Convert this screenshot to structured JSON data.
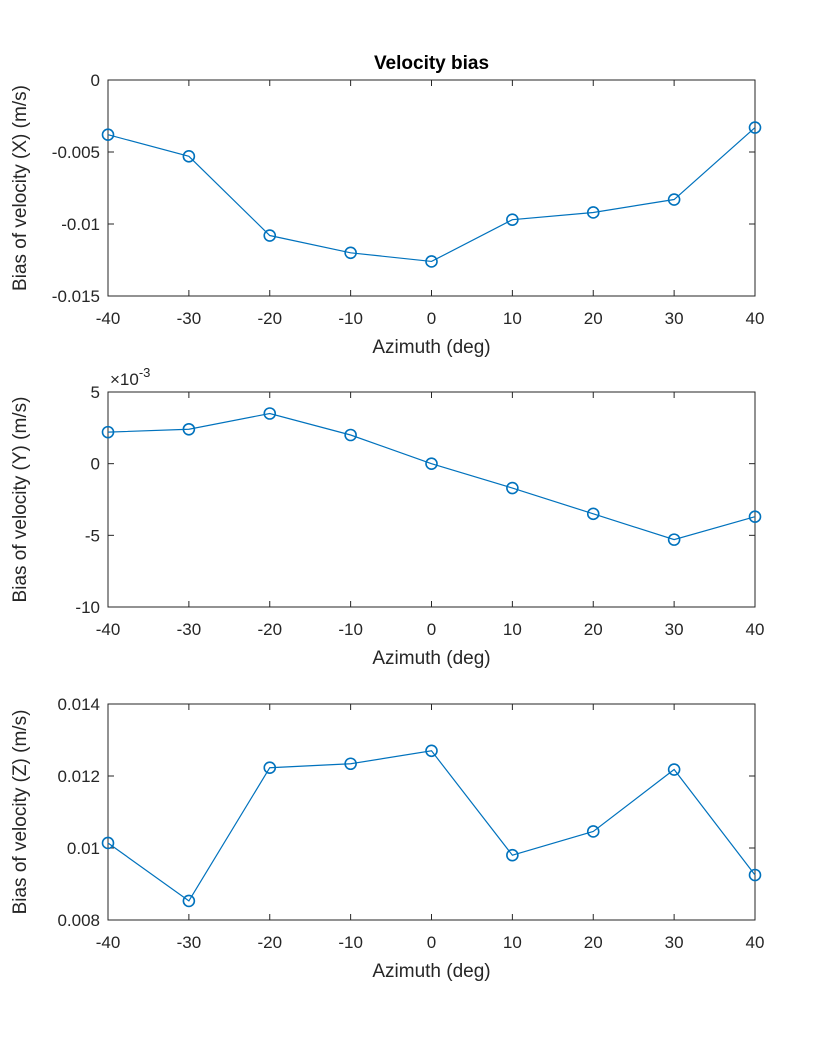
{
  "figure": {
    "title": "Velocity bias"
  },
  "colors": {
    "series": "#0072BD",
    "axis": "#262626",
    "background": "#ffffff"
  },
  "chart_data": [
    {
      "type": "line",
      "title": "Velocity bias",
      "xlabel": "Azimuth (deg)",
      "ylabel": "Bias of velocity (X) (m/s)",
      "xlim": [
        -40,
        40
      ],
      "ylim": [
        -0.015,
        0
      ],
      "xticks": [
        -40,
        -30,
        -20,
        -10,
        0,
        10,
        20,
        30,
        40
      ],
      "xtick_labels": [
        "-40",
        "-30",
        "-20",
        "-10",
        "0",
        "10",
        "20",
        "30",
        "40"
      ],
      "yticks": [
        -0.015,
        -0.01,
        -0.005,
        0
      ],
      "ytick_labels": [
        "-0.015",
        "-0.01",
        "-0.005",
        "0"
      ],
      "grid": false,
      "marker": "circle",
      "x": [
        -40,
        -30,
        -20,
        -10,
        0,
        10,
        20,
        30,
        40
      ],
      "series": [
        {
          "values": [
            -0.0038,
            -0.0053,
            -0.0108,
            -0.012,
            -0.0126,
            -0.0097,
            -0.0092,
            -0.0083,
            -0.0033
          ]
        }
      ]
    },
    {
      "type": "line",
      "title": "",
      "xlabel": "Azimuth (deg)",
      "ylabel": "Bias of velocity (Y) (m/s)",
      "y_multiplier": "×10-3",
      "xlim": [
        -40,
        40
      ],
      "ylim": [
        -0.01,
        0.005
      ],
      "xticks": [
        -40,
        -30,
        -20,
        -10,
        0,
        10,
        20,
        30,
        40
      ],
      "xtick_labels": [
        "-40",
        "-30",
        "-20",
        "-10",
        "0",
        "10",
        "20",
        "30",
        "40"
      ],
      "yticks": [
        -0.01,
        -0.005,
        0,
        0.005
      ],
      "ytick_labels": [
        "-10",
        "-5",
        "0",
        "5"
      ],
      "grid": false,
      "marker": "circle",
      "x": [
        -40,
        -30,
        -20,
        -10,
        0,
        10,
        20,
        30,
        40
      ],
      "series": [
        {
          "values": [
            0.0022,
            0.0024,
            0.0035,
            0.002,
            0.0,
            -0.0017,
            -0.0035,
            -0.0053,
            -0.0037
          ]
        }
      ]
    },
    {
      "type": "line",
      "title": "",
      "xlabel": "Azimuth (deg)",
      "ylabel": "Bias of velocity (Z) (m/s)",
      "xlim": [
        -40,
        40
      ],
      "ylim": [
        0.008,
        0.014
      ],
      "xticks": [
        -40,
        -30,
        -20,
        -10,
        0,
        10,
        20,
        30,
        40
      ],
      "xtick_labels": [
        "-40",
        "-30",
        "-20",
        "-10",
        "0",
        "10",
        "20",
        "30",
        "40"
      ],
      "yticks": [
        0.008,
        0.01,
        0.012,
        0.014
      ],
      "ytick_labels": [
        "0.008",
        "0.01",
        "0.012",
        "0.014"
      ],
      "grid": false,
      "marker": "circle",
      "x": [
        -40,
        -30,
        -20,
        -10,
        0,
        10,
        20,
        30,
        40
      ],
      "series": [
        {
          "values": [
            0.01014,
            0.00853,
            0.01223,
            0.01234,
            0.0127,
            0.0098,
            0.01046,
            0.01218,
            0.00925
          ]
        }
      ]
    }
  ]
}
